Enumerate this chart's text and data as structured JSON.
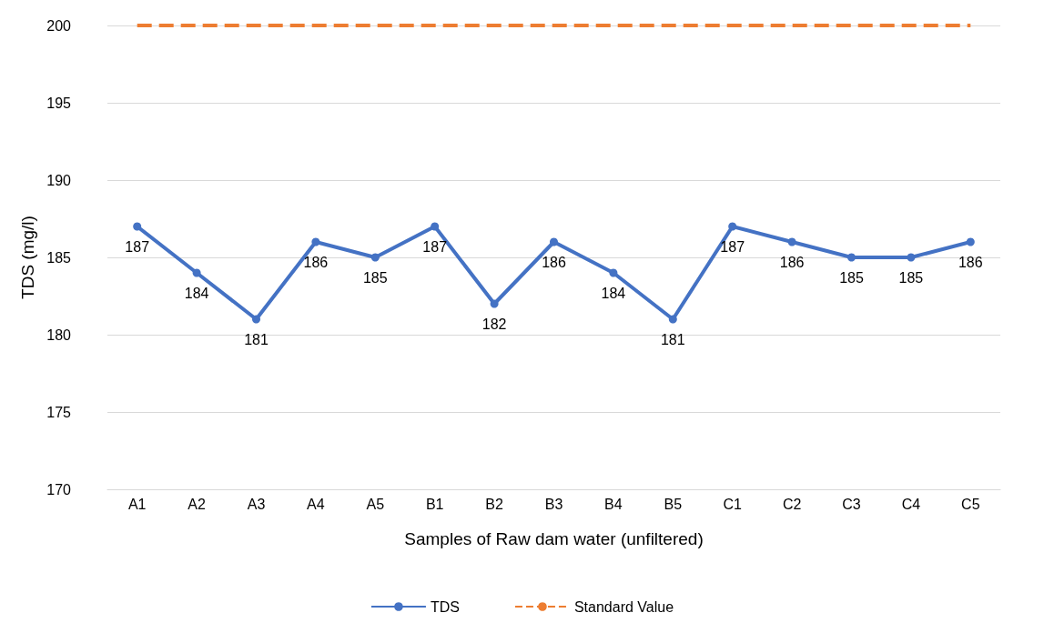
{
  "chart_data": {
    "type": "line",
    "xlabel": "Samples of Raw dam water (unfiltered)",
    "ylabel": "TDS (mg/l)",
    "categories": [
      "A1",
      "A2",
      "A3",
      "A4",
      "A5",
      "B1",
      "B2",
      "B3",
      "B4",
      "B5",
      "C1",
      "C2",
      "C3",
      "C4",
      "C5"
    ],
    "series": [
      {
        "name": "TDS",
        "color": "#4472c4",
        "marker": "circle",
        "line_style": "solid",
        "data_labels": true,
        "values": [
          187,
          184,
          181,
          186,
          185,
          187,
          182,
          186,
          184,
          181,
          187,
          186,
          185,
          185,
          186
        ]
      },
      {
        "name": "Standard Value",
        "color": "#ed7d31",
        "marker": "none",
        "line_style": "dashed",
        "values": [
          200,
          200,
          200,
          200,
          200,
          200,
          200,
          200,
          200,
          200,
          200,
          200,
          200,
          200,
          200
        ]
      }
    ],
    "ylim": [
      170,
      200
    ],
    "yticks": [
      170,
      175,
      180,
      185,
      190,
      195,
      200
    ],
    "grid": "y",
    "legend": "bottom"
  }
}
